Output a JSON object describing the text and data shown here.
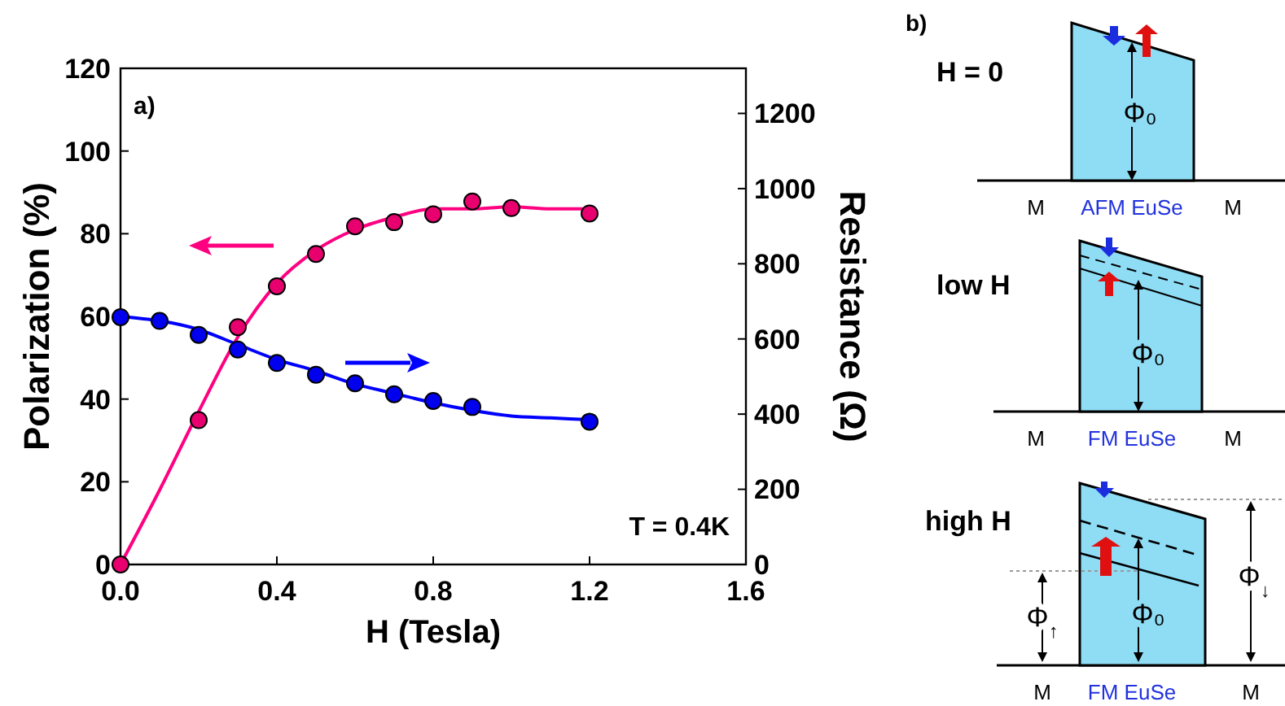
{
  "chart_data": [
    {
      "type": "scatter",
      "xlabel": "H (Tesla)",
      "ylabel": "Polarization (%)",
      "y2label": "Resistance (Ω)",
      "xlim": [
        0,
        1.6
      ],
      "xticks": [
        {
          "value": 0,
          "label": "0.0"
        },
        0.4,
        0.8,
        1.2,
        1.6
      ],
      "ylim": [
        0,
        120
      ],
      "yticks": [
        0,
        20,
        40,
        60,
        80,
        100,
        120
      ],
      "y2lim": [
        0,
        1320
      ],
      "y2ticks": [
        0,
        200,
        400,
        600,
        800,
        1000,
        1200
      ],
      "marker": "circle",
      "grid": false,
      "series": [
        {
          "type": "line",
          "color": "#ff0080",
          "marker": "none",
          "x": [
            0,
            0.1,
            0.2,
            0.3,
            0.4,
            0.5,
            0.6,
            0.7,
            0.8,
            0.9,
            1.0,
            1.1,
            1.2
          ],
          "values": [
            0,
            18,
            37,
            55,
            68,
            76,
            81,
            84,
            86,
            86,
            86.5,
            86,
            86
          ]
        },
        {
          "type": "line",
          "color": "#0000ff",
          "marker": "none",
          "axis": "y2",
          "x": [
            0,
            0.2,
            0.3,
            0.4,
            0.5,
            0.6,
            0.7,
            0.8,
            0.9,
            1.0,
            1.1,
            1.2
          ],
          "values": [
            660,
            625,
            585,
            545,
            515,
            480,
            455,
            430,
            410,
            395,
            390,
            385
          ]
        },
        {
          "color": "#e8006f",
          "x": [
            0,
            0.2,
            0.3,
            0.4,
            0.5,
            0.6,
            0.7,
            0.8,
            0.9,
            1.0,
            1.2
          ],
          "values": [
            0,
            34.9,
            57.4,
            67.3,
            75.1,
            81.8,
            82.8,
            84.7,
            87.8,
            86.2,
            84.9
          ]
        },
        {
          "color": "#0000ee",
          "axis": "y2",
          "x": [
            0,
            0.1,
            0.2,
            0.3,
            0.4,
            0.5,
            0.6,
            0.7,
            0.8,
            0.9,
            1.2
          ],
          "values": [
            658,
            648,
            611,
            572,
            536,
            505,
            482,
            453,
            435,
            419,
            380
          ]
        }
      ],
      "annotations": [
        "a)",
        "T = 0.4K"
      ]
    },
    {
      "type": "other",
      "annotations": [
        "b)",
        "H = 0",
        "M",
        "AFM EuSe",
        "M",
        "Φ₀",
        "low H",
        "M",
        "FM EuSe",
        "M",
        "Φ₀",
        "high H",
        "M",
        "FM EuSe",
        "M",
        "Φ₀",
        "Φ$_{↑}$",
        "Φ$_{↓}$"
      ]
    }
  ]
}
